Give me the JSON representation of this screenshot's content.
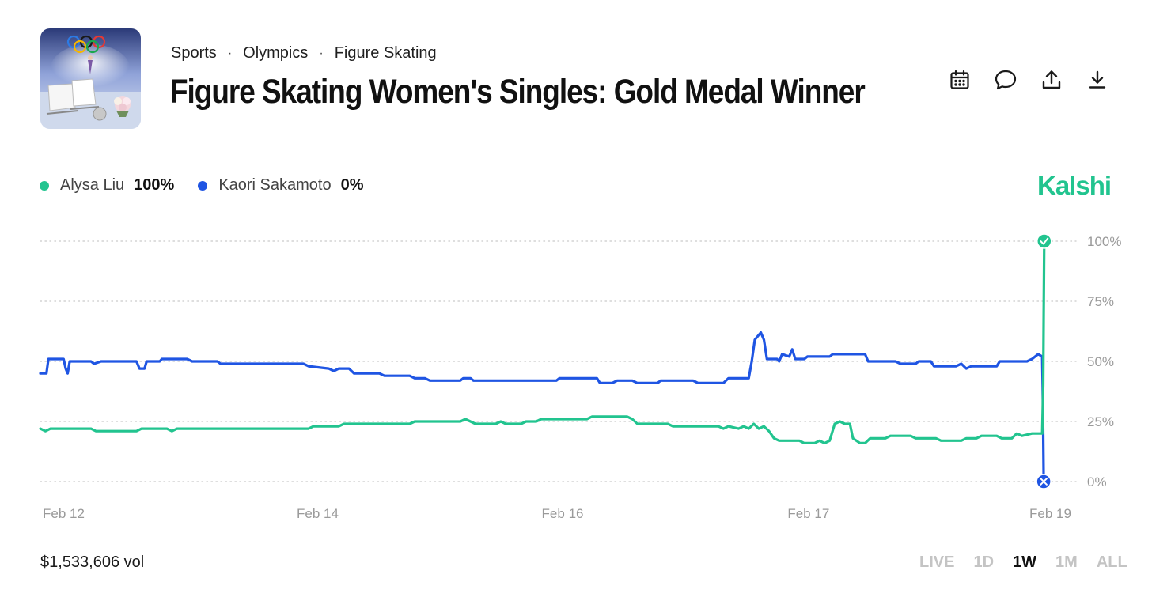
{
  "breadcrumb": [
    "Sports",
    "Olympics",
    "Figure Skating"
  ],
  "title": "Figure Skating Women's Singles: Gold Medal Winner",
  "toolbar": [
    {
      "icon": "calendar-icon"
    },
    {
      "icon": "comment-icon"
    },
    {
      "icon": "share-icon"
    },
    {
      "icon": "download-icon"
    }
  ],
  "brand": "Kalshi",
  "colors": {
    "green": "#22c48f",
    "blue": "#1f55e3",
    "brand": "#22c48f",
    "grid": "#c9c9c9",
    "axis_text": "#9a9a9a"
  },
  "legend": [
    {
      "name": "Alysa Liu",
      "value": "100%",
      "color": "#22c48f"
    },
    {
      "name": "Kaori Sakamoto",
      "value": "0%",
      "color": "#1f55e3"
    }
  ],
  "volume": "$1,533,606 vol",
  "time_ranges": [
    "LIVE",
    "1D",
    "1W",
    "1M",
    "ALL"
  ],
  "active_range": "1W",
  "chart_data": {
    "type": "line",
    "title": "",
    "xlabel": "",
    "ylabel": "",
    "ylim": [
      0,
      100
    ],
    "xlim": [
      0,
      100
    ],
    "yticks": [
      "0%",
      "25%",
      "50%",
      "75%",
      "100%"
    ],
    "ytick_values": [
      0,
      25,
      50,
      75,
      100
    ],
    "xticks": [
      {
        "x": 0,
        "label": "Feb 12"
      },
      {
        "x": 25.1,
        "label": "Feb 14"
      },
      {
        "x": 49.3,
        "label": "Feb 16"
      },
      {
        "x": 73.6,
        "label": "Feb 17"
      },
      {
        "x": 97.5,
        "label": "Feb 19"
      }
    ],
    "grid": true,
    "legend_position": "top-left",
    "series": [
      {
        "name": "Kaori Sakamoto",
        "color": "#1f55e3",
        "end_marker": "cross",
        "points": [
          [
            0,
            45
          ],
          [
            0.6,
            45
          ],
          [
            0.8,
            51
          ],
          [
            2.3,
            51
          ],
          [
            2.5,
            47
          ],
          [
            2.7,
            45
          ],
          [
            2.9,
            50
          ],
          [
            5.0,
            50
          ],
          [
            5.3,
            49
          ],
          [
            6.0,
            50
          ],
          [
            9.5,
            50
          ],
          [
            9.8,
            47
          ],
          [
            10.3,
            47
          ],
          [
            10.5,
            50
          ],
          [
            11.8,
            50
          ],
          [
            12.0,
            51
          ],
          [
            14.5,
            51
          ],
          [
            15.0,
            50
          ],
          [
            17.5,
            50
          ],
          [
            17.8,
            49
          ],
          [
            26.0,
            49
          ],
          [
            26.5,
            48
          ],
          [
            28.5,
            47
          ],
          [
            29.0,
            46
          ],
          [
            29.5,
            47
          ],
          [
            30.5,
            47
          ],
          [
            31.0,
            45
          ],
          [
            33.5,
            45
          ],
          [
            34.0,
            44
          ],
          [
            36.5,
            44
          ],
          [
            37.0,
            43
          ],
          [
            38.0,
            43
          ],
          [
            38.5,
            42
          ],
          [
            41.5,
            42
          ],
          [
            41.8,
            43
          ],
          [
            42.5,
            43
          ],
          [
            42.8,
            42
          ],
          [
            51.0,
            42
          ],
          [
            51.3,
            43
          ],
          [
            55.0,
            43
          ],
          [
            55.3,
            41
          ],
          [
            56.5,
            41
          ],
          [
            57.0,
            42
          ],
          [
            58.5,
            42
          ],
          [
            59.0,
            41
          ],
          [
            61.0,
            41
          ],
          [
            61.3,
            42
          ],
          [
            64.5,
            42
          ],
          [
            65.0,
            41
          ],
          [
            67.5,
            41
          ],
          [
            68.0,
            43
          ],
          [
            70.0,
            43
          ],
          [
            70.3,
            50
          ],
          [
            70.6,
            59
          ],
          [
            71.2,
            62
          ],
          [
            71.5,
            59
          ],
          [
            71.8,
            51
          ],
          [
            72.8,
            51
          ],
          [
            73.0,
            50
          ],
          [
            73.3,
            53
          ],
          [
            74.0,
            52
          ],
          [
            74.3,
            55
          ],
          [
            74.6,
            51
          ],
          [
            75.5,
            51
          ],
          [
            75.8,
            52
          ],
          [
            78.0,
            52
          ],
          [
            78.3,
            53
          ],
          [
            81.5,
            53
          ],
          [
            81.8,
            50
          ],
          [
            84.5,
            50
          ],
          [
            85.0,
            49
          ],
          [
            86.5,
            49
          ],
          [
            86.8,
            50
          ],
          [
            88.0,
            50
          ],
          [
            88.3,
            48
          ],
          [
            90.5,
            48
          ],
          [
            91.0,
            49
          ],
          [
            91.5,
            47
          ],
          [
            92.0,
            48
          ],
          [
            94.5,
            48
          ],
          [
            94.8,
            50
          ],
          [
            97.5,
            50
          ],
          [
            98.0,
            51
          ],
          [
            98.6,
            53
          ],
          [
            99.0,
            52
          ],
          [
            99.05,
            40
          ],
          [
            99.1,
            20
          ],
          [
            99.15,
            0
          ]
        ]
      },
      {
        "name": "Alysa Liu",
        "color": "#22c48f",
        "end_marker": "check",
        "points": [
          [
            0,
            22
          ],
          [
            0.5,
            21
          ],
          [
            1.0,
            22
          ],
          [
            5.0,
            22
          ],
          [
            5.5,
            21
          ],
          [
            9.5,
            21
          ],
          [
            10.0,
            22
          ],
          [
            12.5,
            22
          ],
          [
            13.0,
            21
          ],
          [
            13.5,
            22
          ],
          [
            26.5,
            22
          ],
          [
            27.0,
            23
          ],
          [
            29.5,
            23
          ],
          [
            30.0,
            24
          ],
          [
            36.5,
            24
          ],
          [
            37.0,
            25
          ],
          [
            41.5,
            25
          ],
          [
            42.0,
            26
          ],
          [
            42.5,
            25
          ],
          [
            43.0,
            24
          ],
          [
            45.0,
            24
          ],
          [
            45.5,
            25
          ],
          [
            46.0,
            24
          ],
          [
            47.5,
            24
          ],
          [
            48.0,
            25
          ],
          [
            49.0,
            25
          ],
          [
            49.5,
            26
          ],
          [
            54.0,
            26
          ],
          [
            54.5,
            27
          ],
          [
            58.0,
            27
          ],
          [
            58.5,
            26
          ],
          [
            59.0,
            24
          ],
          [
            62.0,
            24
          ],
          [
            62.5,
            23
          ],
          [
            67.0,
            23
          ],
          [
            67.5,
            22
          ],
          [
            68.0,
            23
          ],
          [
            69.0,
            22
          ],
          [
            69.5,
            23
          ],
          [
            70.0,
            22
          ],
          [
            70.5,
            24
          ],
          [
            71.0,
            22
          ],
          [
            71.5,
            23
          ],
          [
            72.0,
            21
          ],
          [
            72.5,
            18
          ],
          [
            73.0,
            17
          ],
          [
            75.0,
            17
          ],
          [
            75.5,
            16
          ],
          [
            76.5,
            16
          ],
          [
            77.0,
            17
          ],
          [
            77.5,
            16
          ],
          [
            78.0,
            17
          ],
          [
            78.5,
            24
          ],
          [
            79.0,
            25
          ],
          [
            79.5,
            24
          ],
          [
            80.0,
            24
          ],
          [
            80.3,
            18
          ],
          [
            81.0,
            16
          ],
          [
            81.5,
            16
          ],
          [
            82.0,
            18
          ],
          [
            83.5,
            18
          ],
          [
            84.0,
            19
          ],
          [
            86.0,
            19
          ],
          [
            86.5,
            18
          ],
          [
            88.5,
            18
          ],
          [
            89.0,
            17
          ],
          [
            91.0,
            17
          ],
          [
            91.5,
            18
          ],
          [
            92.5,
            18
          ],
          [
            93.0,
            19
          ],
          [
            94.5,
            19
          ],
          [
            95.0,
            18
          ],
          [
            96.0,
            18
          ],
          [
            96.5,
            20
          ],
          [
            97.0,
            19
          ],
          [
            98.0,
            20
          ],
          [
            99.0,
            20
          ],
          [
            99.1,
            40
          ],
          [
            99.15,
            70
          ],
          [
            99.2,
            100
          ]
        ]
      }
    ]
  }
}
